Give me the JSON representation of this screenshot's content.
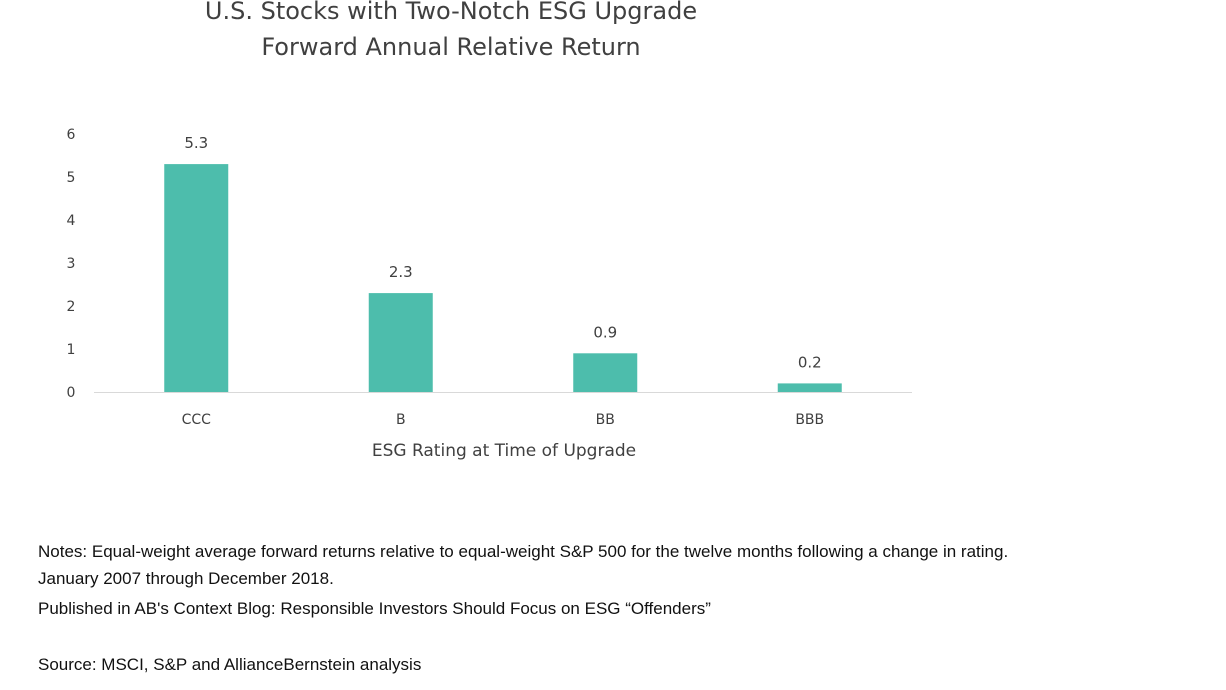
{
  "chart_data": {
    "type": "bar",
    "title": "U.S. Stocks with Two-Notch ESG Upgrade",
    "subtitle": "Forward Annual Relative Return",
    "xlabel": "ESG Rating at Time of Upgrade",
    "ylabel": "",
    "categories": [
      "CCC",
      "B",
      "BB",
      "BBB"
    ],
    "values": [
      5.3,
      2.3,
      0.9,
      0.2
    ],
    "data_labels": [
      "5.3",
      "2.3",
      "0.9",
      "0.2"
    ],
    "ylim": [
      0,
      6
    ],
    "yticks": [
      0,
      1,
      2,
      3,
      4,
      5,
      6
    ],
    "grid": false,
    "legend": "none",
    "bar_color": "#4dbdac"
  },
  "notes": {
    "line1": "Notes: Equal-weight average forward returns relative to equal-weight S&P 500 for the twelve months following a change in rating.",
    "line2": "January 2007 through December 2018.",
    "line3": "Published in AB's Context Blog: Responsible Investors Should Focus on ESG “Offenders”",
    "source": "Source: MSCI, S&P and AllianceBernstein analysis"
  }
}
